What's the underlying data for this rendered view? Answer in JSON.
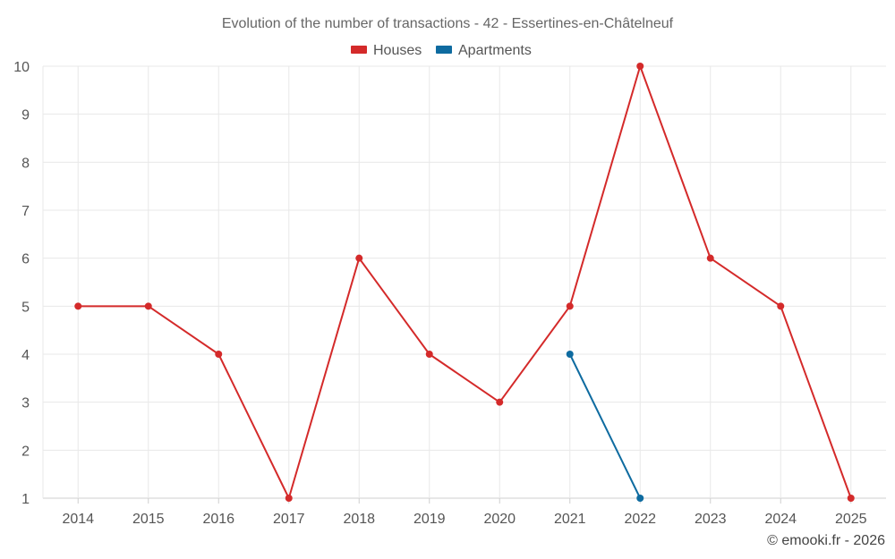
{
  "chart_data": {
    "type": "line",
    "title": "Evolution of the number of transactions - 42 - Essertines-en-Châtelneuf",
    "categories": [
      "2014",
      "2015",
      "2016",
      "2017",
      "2018",
      "2019",
      "2020",
      "2021",
      "2022",
      "2023",
      "2024",
      "2025"
    ],
    "ylim": [
      1,
      10
    ],
    "yticks": [
      "1",
      "2",
      "3",
      "4",
      "5",
      "6",
      "7",
      "8",
      "9",
      "10"
    ],
    "grid": true,
    "legend_position": "top-center",
    "series": [
      {
        "name": "Houses",
        "color": "#d42a2a",
        "values": [
          5,
          5,
          4,
          1,
          6,
          4,
          3,
          5,
          10,
          6,
          5,
          1
        ]
      },
      {
        "name": "Apartments",
        "color": "#0e6ba0",
        "values": [
          null,
          null,
          null,
          null,
          null,
          null,
          null,
          4,
          1,
          null,
          null,
          null
        ]
      }
    ]
  },
  "credit": "© emooki.fr - 2026"
}
